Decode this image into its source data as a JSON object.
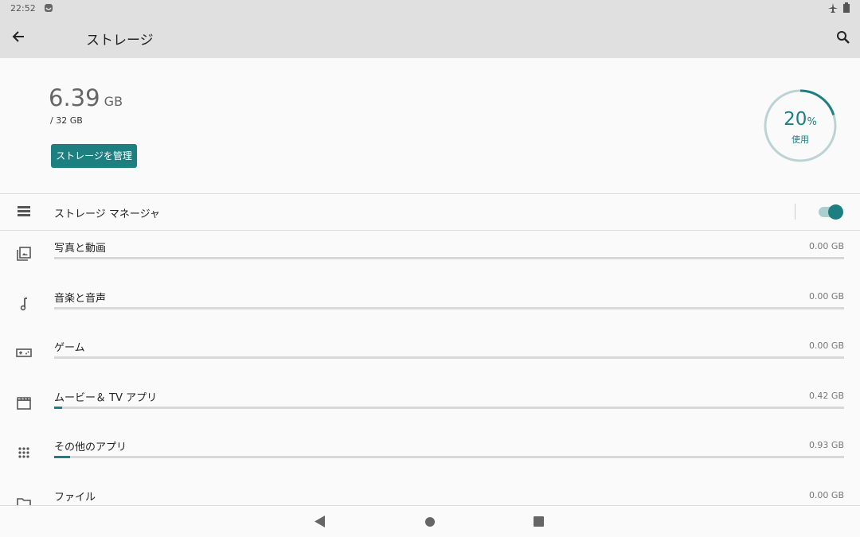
{
  "status_bar": {
    "time": "22:52",
    "icons": [
      "notification-icon",
      "airplane-mode-icon",
      "battery-icon"
    ]
  },
  "toolbar": {
    "title": "ストレージ",
    "back_icon": "arrow-back-icon",
    "search_icon": "search-icon"
  },
  "summary": {
    "used_value": "6.39",
    "used_unit": "GB",
    "total": "/ 32 GB",
    "manage_button": "ストレージを管理",
    "percent_value": "20",
    "percent_sign": "%",
    "percent_label": "使用",
    "percent_used": 20,
    "accent": "#1d7f80"
  },
  "storage_manager": {
    "label": "ストレージ マネージャ",
    "enabled": true
  },
  "categories": [
    {
      "label": "写真と動画",
      "size": "0.00 GB",
      "fill_percent": 0,
      "icon": "photo-library-icon"
    },
    {
      "label": "音楽と音声",
      "size": "0.00 GB",
      "fill_percent": 0,
      "icon": "music-note-icon"
    },
    {
      "label": "ゲーム",
      "size": "0.00 GB",
      "fill_percent": 0,
      "icon": "gamepad-icon"
    },
    {
      "label": "ムービー＆ TV アプリ",
      "size": "0.42 GB",
      "fill_percent": 1,
      "icon": "movie-icon"
    },
    {
      "label": "その他のアプリ",
      "size": "0.93 GB",
      "fill_percent": 2,
      "icon": "apps-icon"
    },
    {
      "label": "ファイル",
      "size": "0.00 GB",
      "fill_percent": 0,
      "icon": "folder-icon"
    }
  ],
  "nav_bar": {
    "buttons": [
      "back",
      "home",
      "recents"
    ]
  }
}
